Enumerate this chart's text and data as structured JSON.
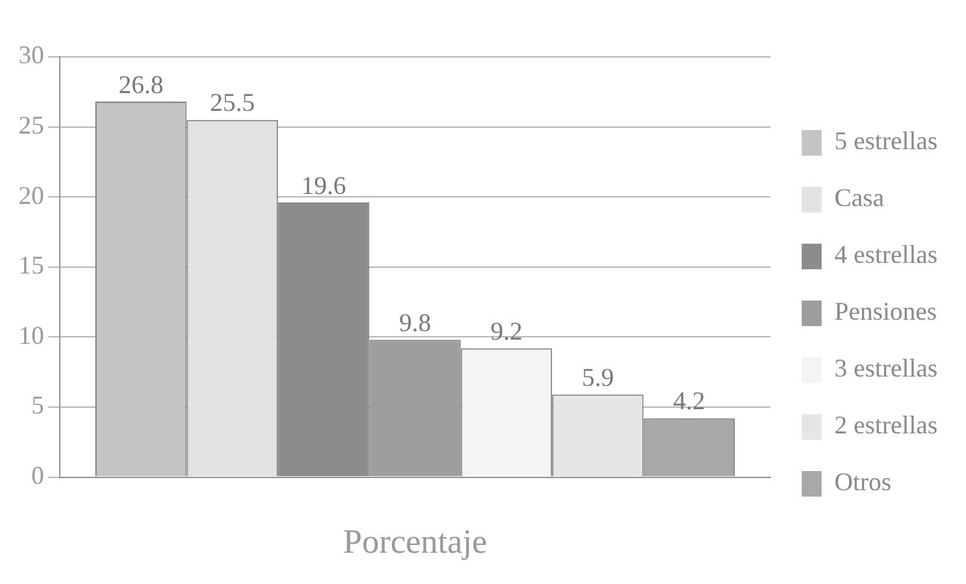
{
  "chart_data": {
    "type": "bar",
    "xlabel": "Porcentaje",
    "categories": [
      null
    ],
    "series": [
      {
        "name": "5 estrellas",
        "color": "#c4c4c4",
        "values": [
          26.8
        ]
      },
      {
        "name": "Casa",
        "color": "#e2e2e2",
        "values": [
          25.5
        ]
      },
      {
        "name": "4 estrellas",
        "color": "#8c8c8c",
        "values": [
          19.6
        ]
      },
      {
        "name": "Pensiones",
        "color": "#9e9e9e",
        "values": [
          9.8
        ]
      },
      {
        "name": "3 estrellas",
        "color": "#f4f4f4",
        "values": [
          9.2
        ]
      },
      {
        "name": "2 estrellas",
        "color": "#e6e6e6",
        "values": [
          5.9
        ]
      },
      {
        "name": "Otros",
        "color": "#a8a8a8",
        "values": [
          4.2
        ]
      }
    ],
    "ylim": [
      0,
      30
    ],
    "yticks": [
      0,
      5,
      10,
      15,
      20,
      25,
      30
    ],
    "grid": "y",
    "legend": "right",
    "data_labels": true
  }
}
